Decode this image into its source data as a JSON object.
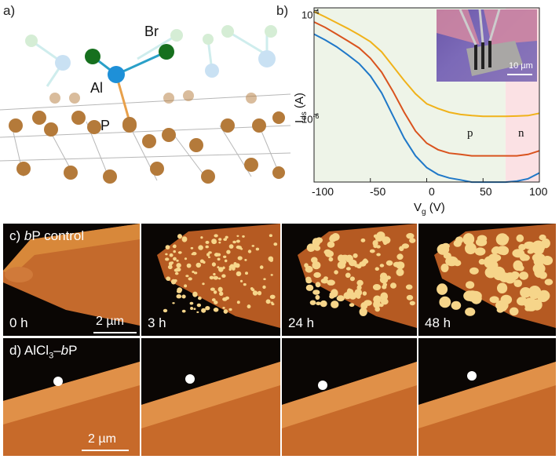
{
  "panel_a": {
    "label": "a)",
    "atoms": {
      "br": "Br",
      "al": "Al",
      "p": "P"
    }
  },
  "panel_b": {
    "label": "b)",
    "inset_scale": "10 µm",
    "region_p": "p",
    "region_n": "n"
  },
  "panel_c": {
    "label": "c) ",
    "label_italic": "b",
    "label_rest": "P control",
    "scale": "2 µm",
    "times": [
      "0 h",
      "3 h",
      "24 h",
      "48 h"
    ]
  },
  "panel_d": {
    "label": "d) AlCl",
    "label_sub": "3",
    "label_dash": "–",
    "label_italic": "b",
    "label_rest": "P",
    "scale": "2 µm"
  },
  "chart_data": {
    "type": "line",
    "xlabel": "V",
    "xlabel_sub": "g",
    "xlabel_unit": " (V)",
    "ylabel": "I",
    "ylabel_sub": "ds",
    "ylabel_unit": " (A)",
    "x_ticks": [
      "-100",
      "-50",
      "0",
      "50",
      "100"
    ],
    "y_ticks": [
      "10",
      "10"
    ],
    "y_tick_exponents": [
      "-4",
      "-6"
    ],
    "xlim": [
      -100,
      100
    ],
    "ylim_log10": [
      -7.3,
      -3.95
    ],
    "scale": "log",
    "grid": false,
    "colors": {
      "yellow": "#f0b21a",
      "orange": "#d9531e",
      "blue": "#1f78c8",
      "bg_p": "#eef4e8",
      "bg_n": "#fbe1e4"
    },
    "n_region_start": 70,
    "series": [
      {
        "color": "#f0b21a",
        "x": [
          -100,
          -90,
          -80,
          -70,
          -60,
          -50,
          -40,
          -30,
          -20,
          -10,
          0,
          10,
          20,
          30,
          40,
          50,
          60,
          70,
          80,
          90,
          100
        ],
        "y": [
          9.5e-05,
          7.5e-05,
          5.8e-05,
          4.5e-05,
          3.4e-05,
          2.5e-05,
          1.6e-05,
          8.5e-06,
          4.5e-06,
          2.5e-06,
          1.6e-06,
          1.3e-06,
          1.1e-06,
          1e-06,
          9.5e-07,
          9.2e-07,
          9.2e-07,
          9.2e-07,
          9.3e-07,
          9.5e-07,
          1.05e-06
        ]
      },
      {
        "color": "#d9531e",
        "x": [
          -100,
          -90,
          -80,
          -70,
          -60,
          -50,
          -40,
          -30,
          -20,
          -10,
          0,
          10,
          20,
          30,
          40,
          50,
          60,
          70,
          80,
          90,
          100
        ],
        "y": [
          6e-05,
          4.7e-05,
          3.5e-05,
          2.6e-05,
          1.9e-05,
          1.2e-05,
          6.5e-06,
          2.8e-06,
          1.1e-06,
          4.8e-07,
          2.8e-07,
          2.1e-07,
          1.8e-07,
          1.7e-07,
          1.6e-07,
          1.6e-07,
          1.6e-07,
          1.6e-07,
          1.6e-07,
          1.7e-07,
          2e-07
        ]
      },
      {
        "color": "#1f78c8",
        "x": [
          -100,
          -90,
          -80,
          -70,
          -60,
          -50,
          -40,
          -30,
          -20,
          -10,
          0,
          10,
          20,
          30,
          40,
          50,
          60,
          70,
          80,
          90,
          100
        ],
        "y": [
          3.5e-05,
          2.7e-05,
          2e-05,
          1.4e-05,
          9.5e-06,
          5.5e-06,
          2.6e-06,
          9.5e-07,
          3.5e-07,
          1.6e-07,
          9.5e-08,
          7e-08,
          6e-08,
          5.5e-08,
          5e-08,
          5e-08,
          5e-08,
          5e-08,
          5.2e-08,
          5.8e-08,
          7.5e-08
        ]
      }
    ]
  }
}
